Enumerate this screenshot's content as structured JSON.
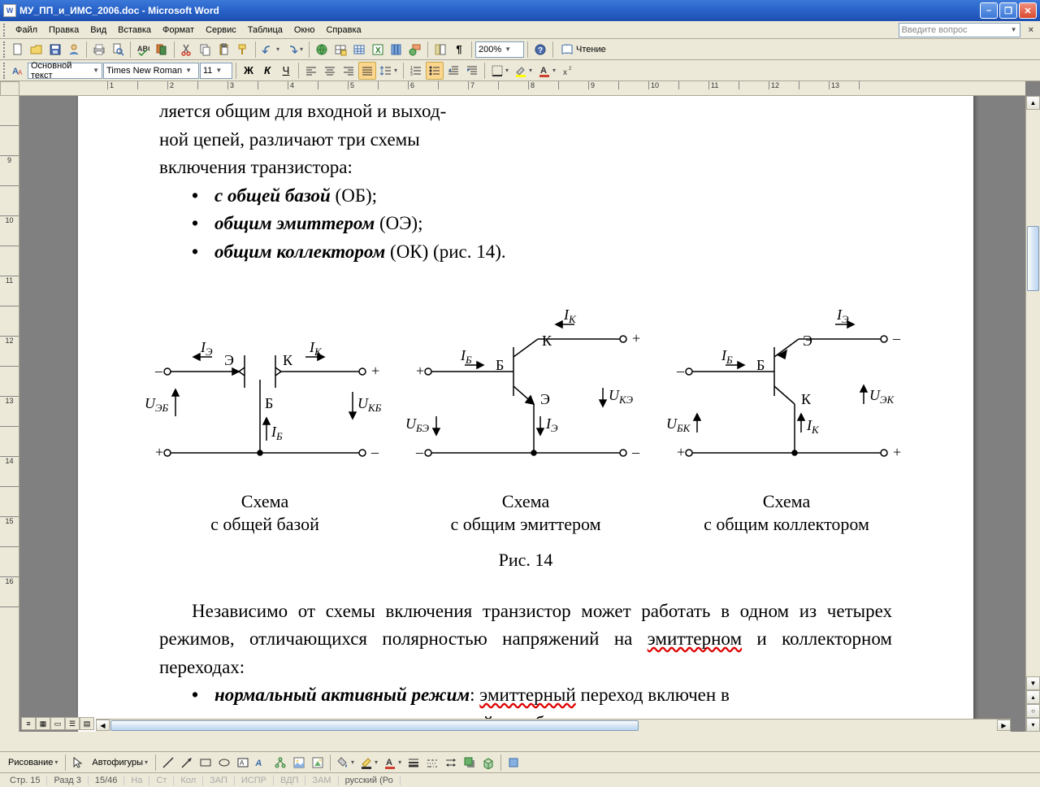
{
  "window": {
    "app_icon": "W",
    "title": "МУ_ПП_и_ИМС_2006.doc - Microsoft Word"
  },
  "menu": {
    "items": [
      "Файл",
      "Правка",
      "Вид",
      "Вставка",
      "Формат",
      "Сервис",
      "Таблица",
      "Окно",
      "Справка"
    ],
    "question_placeholder": "Введите вопрос"
  },
  "toolbar1": {
    "zoom": "200%",
    "reading": "Чтение"
  },
  "toolbar2": {
    "style": "Основной текст",
    "font": "Times New Roman",
    "size": "11"
  },
  "ruler": {
    "hmarks": [
      "",
      "1",
      "",
      "2",
      "",
      "3",
      "",
      "4",
      "",
      "5",
      "",
      "6",
      "",
      "7",
      "",
      "8",
      "",
      "9",
      "",
      "10",
      "",
      "11",
      "",
      "12",
      "",
      "13"
    ],
    "vmarks": [
      "",
      "",
      "9",
      "",
      "10",
      "",
      "11",
      "",
      "12",
      "",
      "13",
      "",
      "14",
      "",
      "15",
      "",
      "16"
    ]
  },
  "doc": {
    "intro_top": "ляется общим для входной и выход-",
    "intro1": "ной цепей, различают три схемы",
    "intro2": "включения транзистора:",
    "b1_bi": "с общей базой",
    "b1_tail": " (ОБ);",
    "b2_bi": "общим эмиттером",
    "b2_tail": " (ОЭ);",
    "b3_bi": "общим коллектором",
    "b3_tail": " (ОК) (рис. 14).",
    "cap1a": "Схема",
    "cap1b": "с общей базой",
    "cap2a": "Схема",
    "cap2b": "с общим эмиттером",
    "cap3a": "Схема",
    "cap3b": "с общим коллектором",
    "figcap": "Рис. 14",
    "para2": "Независимо от схемы включения транзистор может работать в одном из четырех режимов, отличающихся полярностью напряжений на ",
    "para2_red": "эмиттерном",
    "para2_tail": " и коллекторном переходах:",
    "b4_bi": "нормальный активный режим",
    "b4_mid": ": ",
    "b4_red": "эмиттерный",
    "b4_tail": " переход включен в",
    "b4_line2": "прямом направлении, а коллекторный – в обратном;",
    "diagram_labels": {
      "d1": {
        "IE": "I",
        "IE_sub": "Э",
        "IK": "I",
        "IK_sub": "К",
        "IB": "I",
        "IB_sub": "Б",
        "UEB": "U",
        "UEB_sub": "ЭБ",
        "UKB": "U",
        "UKB_sub": "КБ",
        "E": "Э",
        "K": "К",
        "B": "Б",
        "minus": "–",
        "plus": "+"
      },
      "d2": {
        "IB": "I",
        "IB_sub": "Б",
        "IK": "I",
        "IK_sub": "К",
        "IE": "I",
        "IE_sub": "Э",
        "UBE": "U",
        "UBE_sub": "БЭ",
        "UKE": "U",
        "UKE_sub": "КЭ",
        "B": "Б",
        "K": "К",
        "E": "Э",
        "minus": "–",
        "plus": "+"
      },
      "d3": {
        "IB": "I",
        "IB_sub": "Б",
        "IE": "I",
        "IE_sub": "Э",
        "IK": "I",
        "IK_sub": "К",
        "UBK": "U",
        "UBK_sub": "БК",
        "UEK": "U",
        "UEK_sub": "ЭК",
        "B": "Б",
        "E": "Э",
        "K": "К",
        "minus": "–",
        "plus": "+"
      }
    }
  },
  "drawbar": {
    "label": "Рисование",
    "autoshapes": "Автофигуры"
  },
  "status": {
    "page": "Стр. 15",
    "section": "Разд 3",
    "pages": "15/46",
    "at": "На",
    "line": "Ст",
    "col": "Кол",
    "rec": "ЗАП",
    "trk": "ИСПР",
    "ext": "ВДП",
    "ovr": "ЗАМ",
    "lang": "русский (Ро"
  },
  "colors": {
    "titlebar": "#2862c9",
    "page": "#ffffff",
    "desk": "#808080",
    "chrome": "#ece9d8",
    "accent": "#fdd68e",
    "line": "#000000"
  }
}
